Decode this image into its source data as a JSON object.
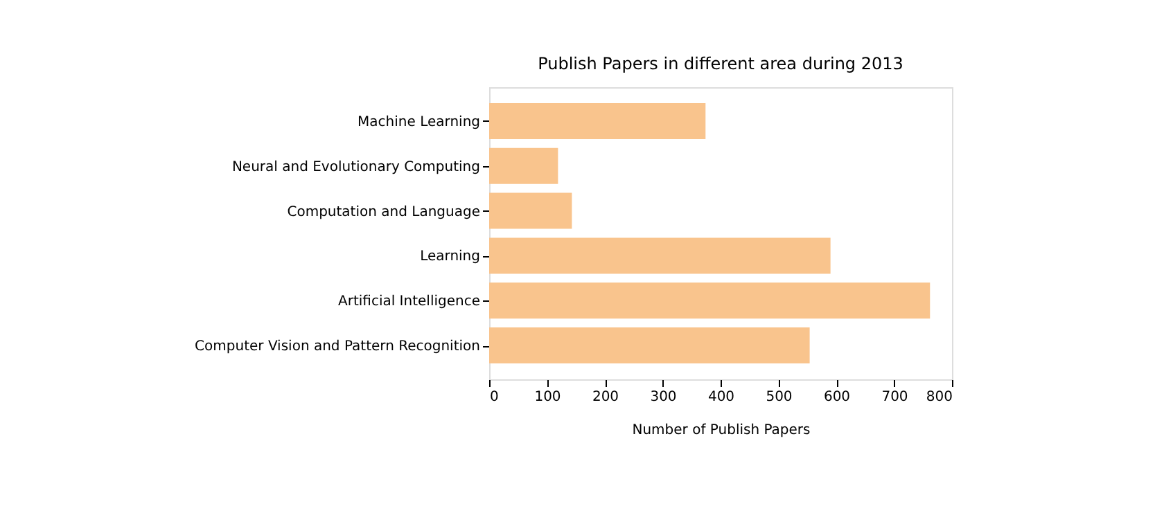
{
  "chart_data": {
    "type": "bar",
    "orientation": "horizontal",
    "title": "Publish Papers in different area during 2013",
    "xlabel": "Number of Publish Papers",
    "categories": [
      "Machine Learning",
      "Neural and Evolutionary Computing",
      "Computation and Language",
      "Learning",
      "Artificial Intelligence",
      "Computer Vision and Pattern Recognition"
    ],
    "values": [
      374,
      119,
      143,
      590,
      762,
      554
    ],
    "color": "#f9c48d",
    "xlim": [
      0,
      800
    ],
    "xticks": [
      0,
      100,
      200,
      300,
      400,
      500,
      600,
      700,
      800
    ],
    "grid": false
  }
}
